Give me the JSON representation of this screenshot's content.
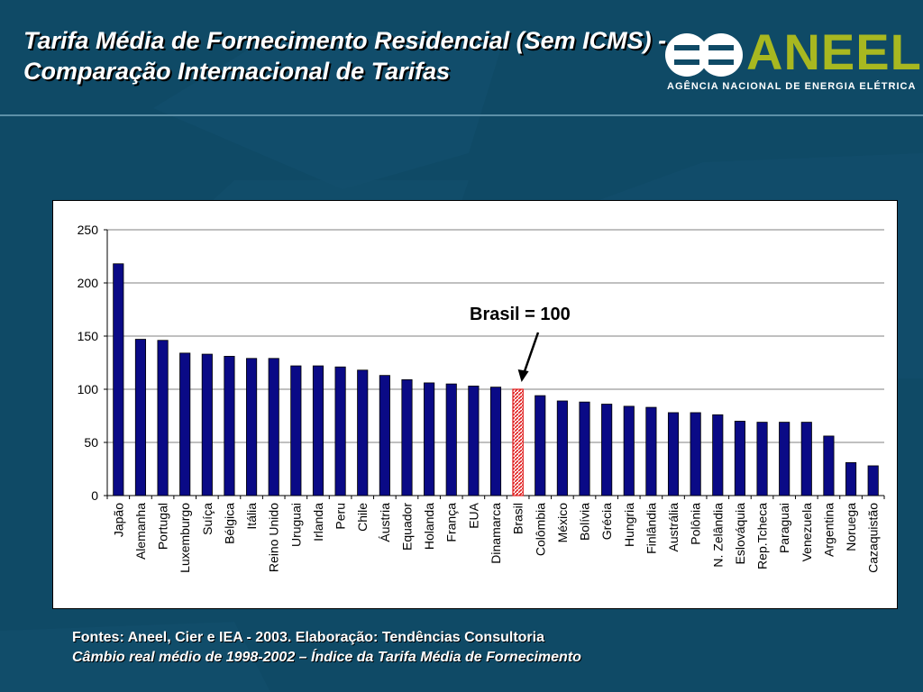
{
  "slide": {
    "title": "Tarifa Média de Fornecimento Residencial (Sem ICMS) - Comparação Internacional de Tarifas",
    "logo_name": "ANEEL",
    "logo_subtitle": "AGÊNCIA NACIONAL DE ENERGIA ELÉTRICA",
    "footer_line1": "Fontes: Aneel, Cier e IEA - 2003. Elaboração: Tendências Consultoria",
    "footer_line2": "Câmbio real médio de 1998-2002 – Índice da Tarifa Média de Fornecimento"
  },
  "colors": {
    "background": "#0f4a66",
    "bar": "#0a0a86",
    "highlight_bar": "#e02020",
    "logo_green": "#a8b820"
  },
  "chart_data": {
    "type": "bar",
    "categories": [
      "Japão",
      "Alemanha",
      "Portugal",
      "Luxemburgo",
      "Suíça",
      "Bélgica",
      "Itália",
      "Reino Unido",
      "Uruguai",
      "Irlanda",
      "Peru",
      "Chile",
      "Áustria",
      "Equador",
      "Holanda",
      "França",
      "EUA",
      "Dinamarca",
      "Brasil",
      "Colômbia",
      "México",
      "Bolívia",
      "Grécia",
      "Hungria",
      "Finlândia",
      "Austrália",
      "Polônia",
      "N. Zelândia",
      "Eslováquia",
      "Rep.Tcheca",
      "Paraguai",
      "Venezuela",
      "Argentina",
      "Noruega",
      "Cazaquistão"
    ],
    "values": [
      218,
      147,
      146,
      134,
      133,
      131,
      129,
      129,
      122,
      122,
      121,
      118,
      113,
      109,
      106,
      105,
      103,
      102,
      100,
      94,
      89,
      88,
      86,
      84,
      83,
      78,
      78,
      76,
      70,
      69,
      69,
      69,
      56,
      31,
      28
    ],
    "highlight_category": "Brasil",
    "ylim": [
      0,
      250
    ],
    "yticks": [
      0,
      50,
      100,
      150,
      200,
      250
    ],
    "grid": true,
    "annotation": "Brasil = 100",
    "title": "",
    "xlabel": "",
    "ylabel": ""
  }
}
